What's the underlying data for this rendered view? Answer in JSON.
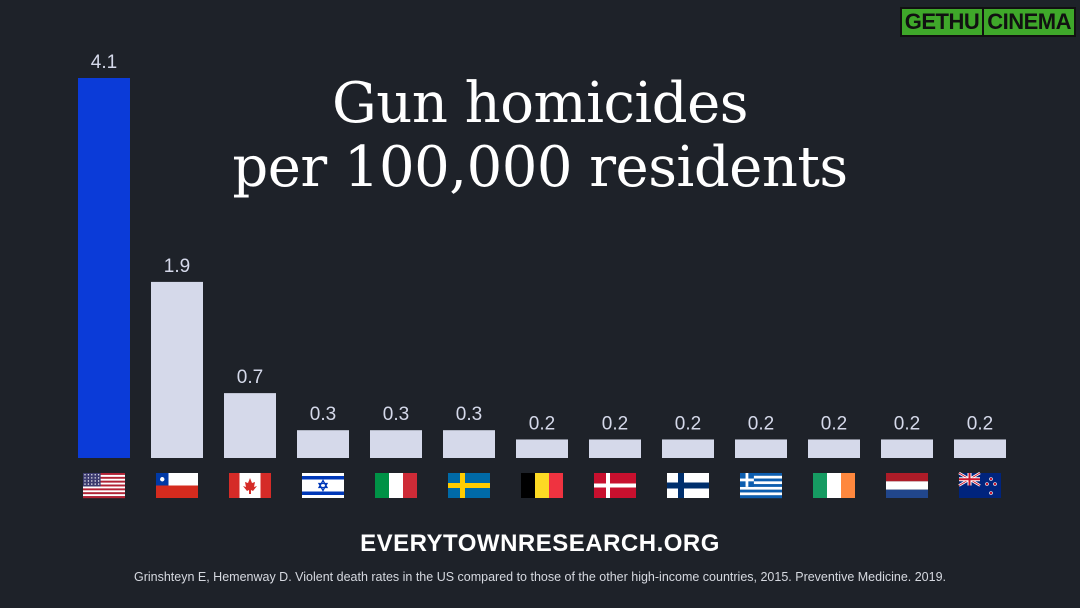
{
  "logo": {
    "text_a": "GETHU",
    "text_b": "CINEMA"
  },
  "footer": {
    "site": "EVERYTOWNRESEARCH.ORG",
    "source": "Grinshteyn E, Hemenway D. Violent death rates in the US compared to those of the other high-income countries, 2015. Preventive Medicine. 2019."
  },
  "chart_data": {
    "type": "bar",
    "title_line1": "Gun homicides",
    "title_line2": "per 100,000 residents",
    "categories": [
      "United States",
      "Chile",
      "Canada",
      "Israel",
      "Italy",
      "Sweden",
      "Belgium",
      "Denmark",
      "Finland",
      "Greece",
      "Ireland",
      "Netherlands",
      "New Zealand"
    ],
    "values": [
      4.1,
      1.9,
      0.7,
      0.3,
      0.3,
      0.3,
      0.2,
      0.2,
      0.2,
      0.2,
      0.2,
      0.2,
      0.2
    ],
    "value_labels": [
      "4.1",
      "1.9",
      "0.7",
      "0.3",
      "0.3",
      "0.3",
      "0.2",
      "0.2",
      "0.2",
      "0.2",
      "0.2",
      "0.2",
      "0.2"
    ],
    "flags": [
      "us-flag",
      "chile-flag",
      "canada-flag",
      "israel-flag",
      "italy-flag",
      "sweden-flag",
      "belgium-flag",
      "denmark-flag",
      "finland-flag",
      "greece-flag",
      "ireland-flag",
      "netherlands-flag",
      "new-zealand-flag"
    ],
    "highlight_color": "#0b3bd8",
    "bar_color": "#d5d9ea",
    "label_color": "#d5d9ea",
    "ylim": [
      0,
      4.1
    ],
    "grid": false,
    "legend": "none"
  }
}
